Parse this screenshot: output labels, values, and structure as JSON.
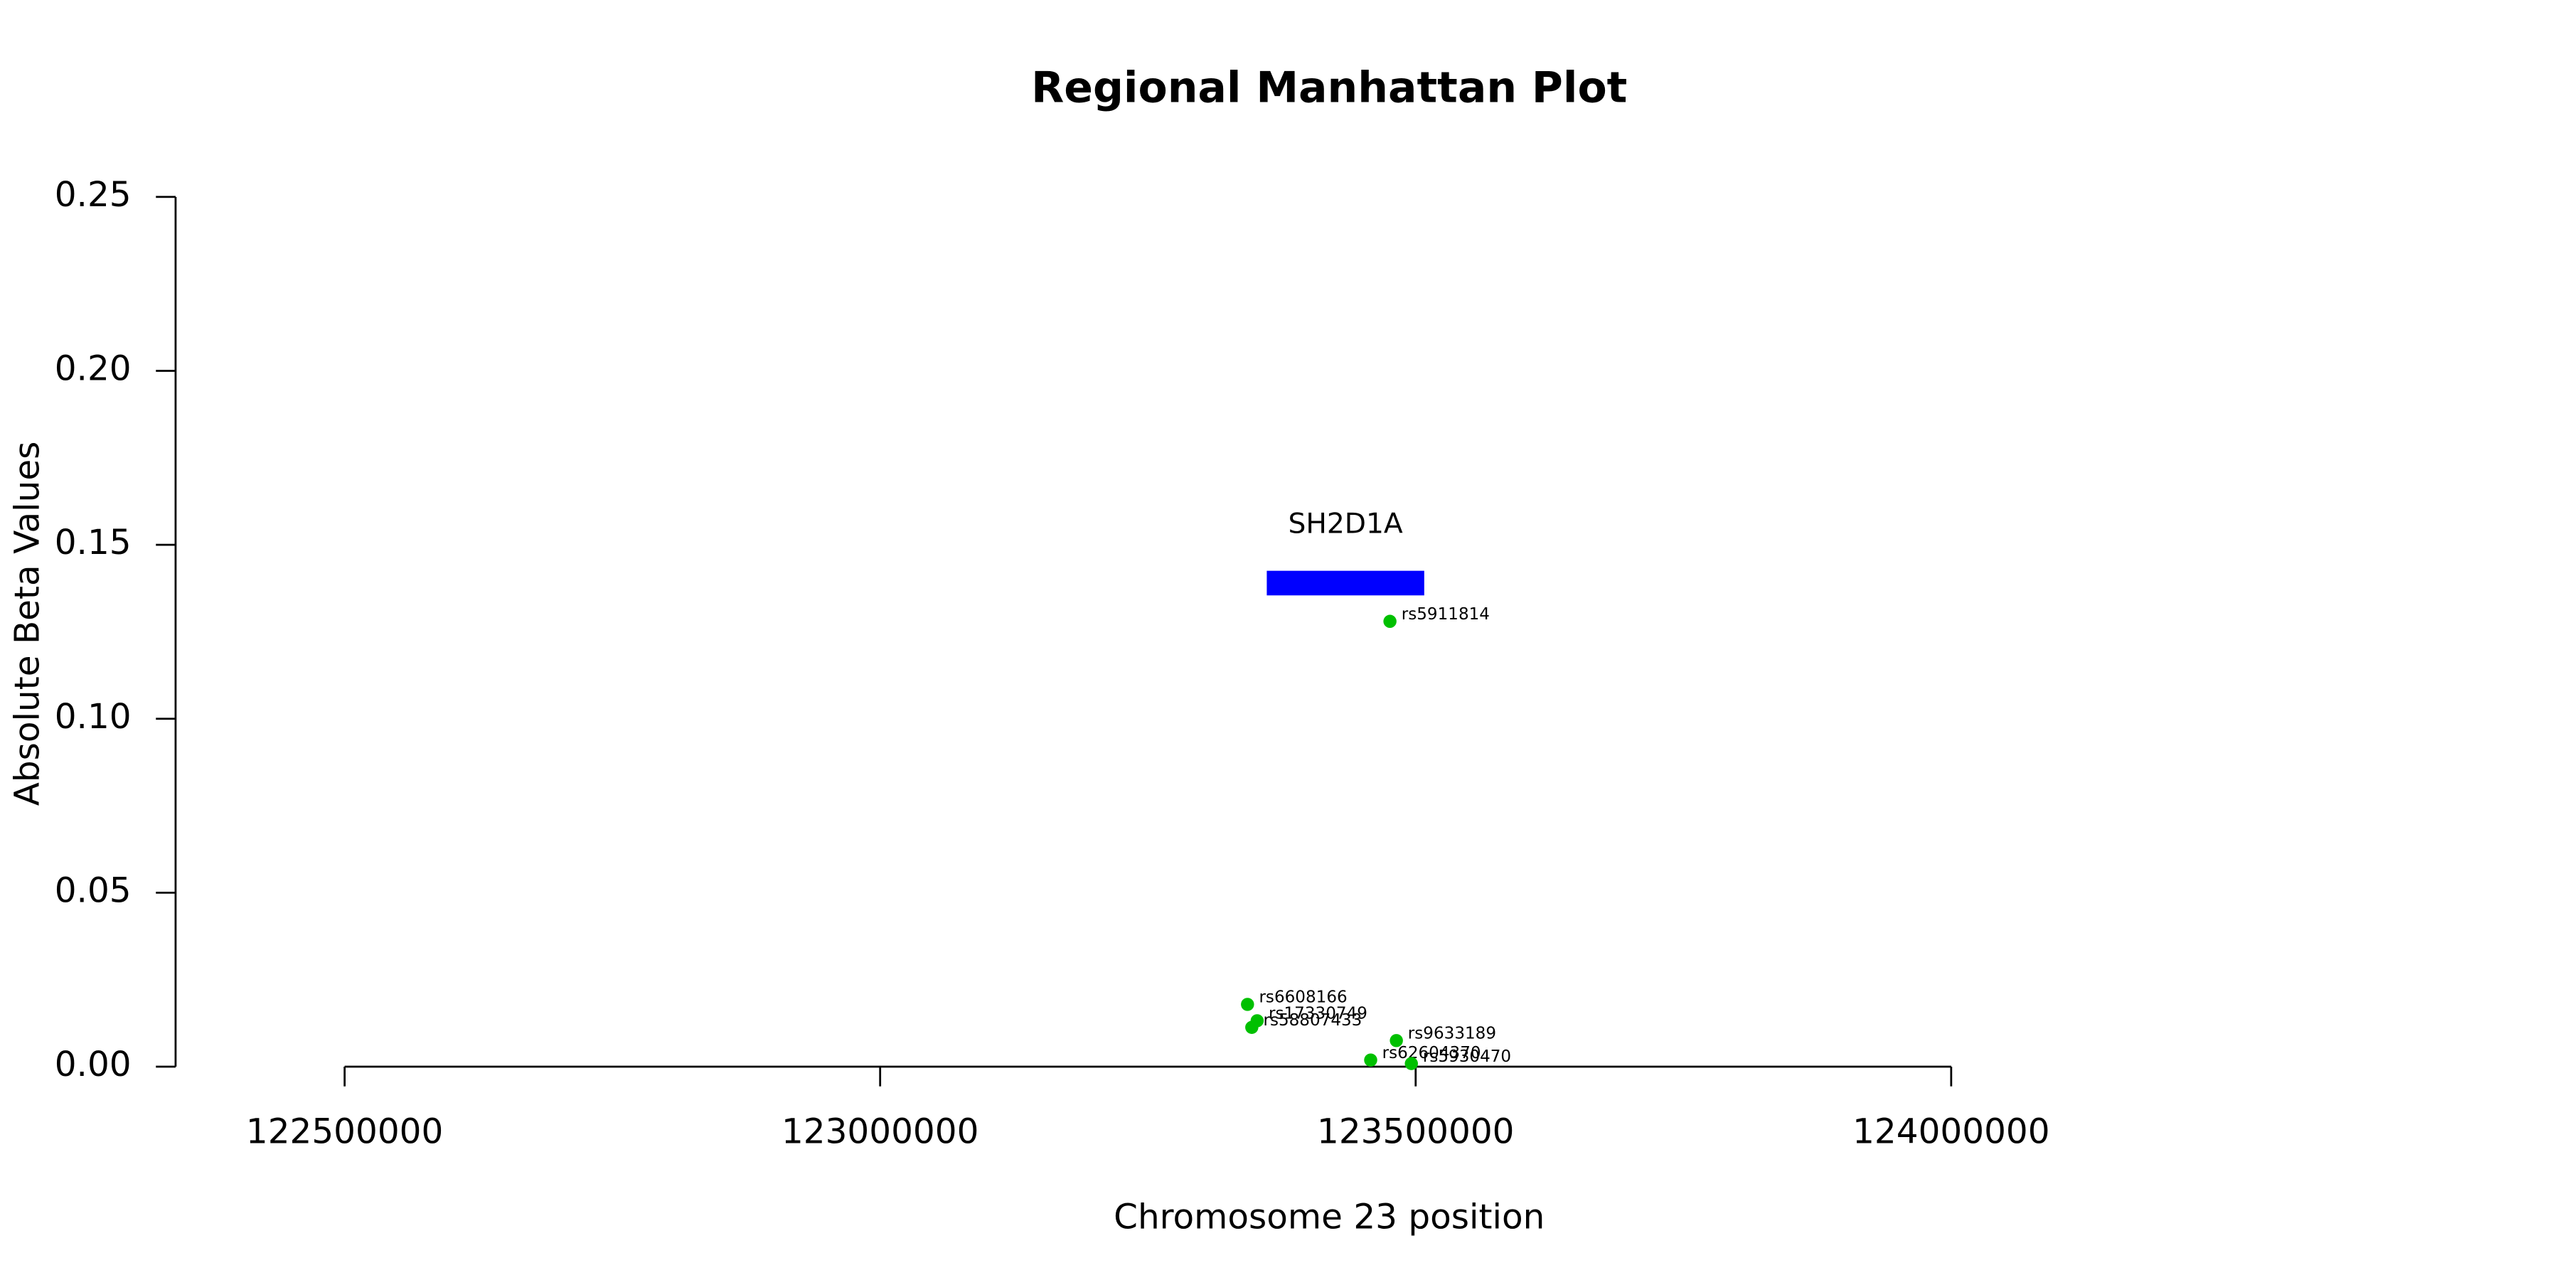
{
  "chart_data": {
    "type": "scatter",
    "title": "Regional Manhattan Plot",
    "x_label": "Chromosome 23 position",
    "y_label": "Absolute Beta Values",
    "x": [
      123476000,
      123343000,
      123352000,
      123347000,
      123482000,
      123458000,
      123496000
    ],
    "values": [
      0.128,
      0.0179,
      0.0132,
      0.0113,
      0.0075,
      0.0019,
      0.0009
    ],
    "point_labels": [
      "rs5911814",
      "rs6608166",
      "rs17330749",
      "rs58807433",
      "rs9633189",
      "rs62604370",
      "rs5930470"
    ],
    "color": "#00c000",
    "gene": {
      "name": "SH2D1A",
      "start": 123361000,
      "end": 123508000,
      "y": 0.139,
      "color": "#0000ff"
    },
    "xlim": [
      122500000,
      124000000
    ],
    "xticks": [
      122500000,
      123000000,
      123500000,
      124000000
    ],
    "ylim": [
      0,
      0.25
    ],
    "yticks": [
      {
        "value": 0,
        "label": "0.00"
      },
      0.05,
      {
        "value": 0.1,
        "label": "0.10"
      },
      0.15,
      {
        "value": 0.2,
        "label": "0.20"
      },
      0.25
    ]
  }
}
